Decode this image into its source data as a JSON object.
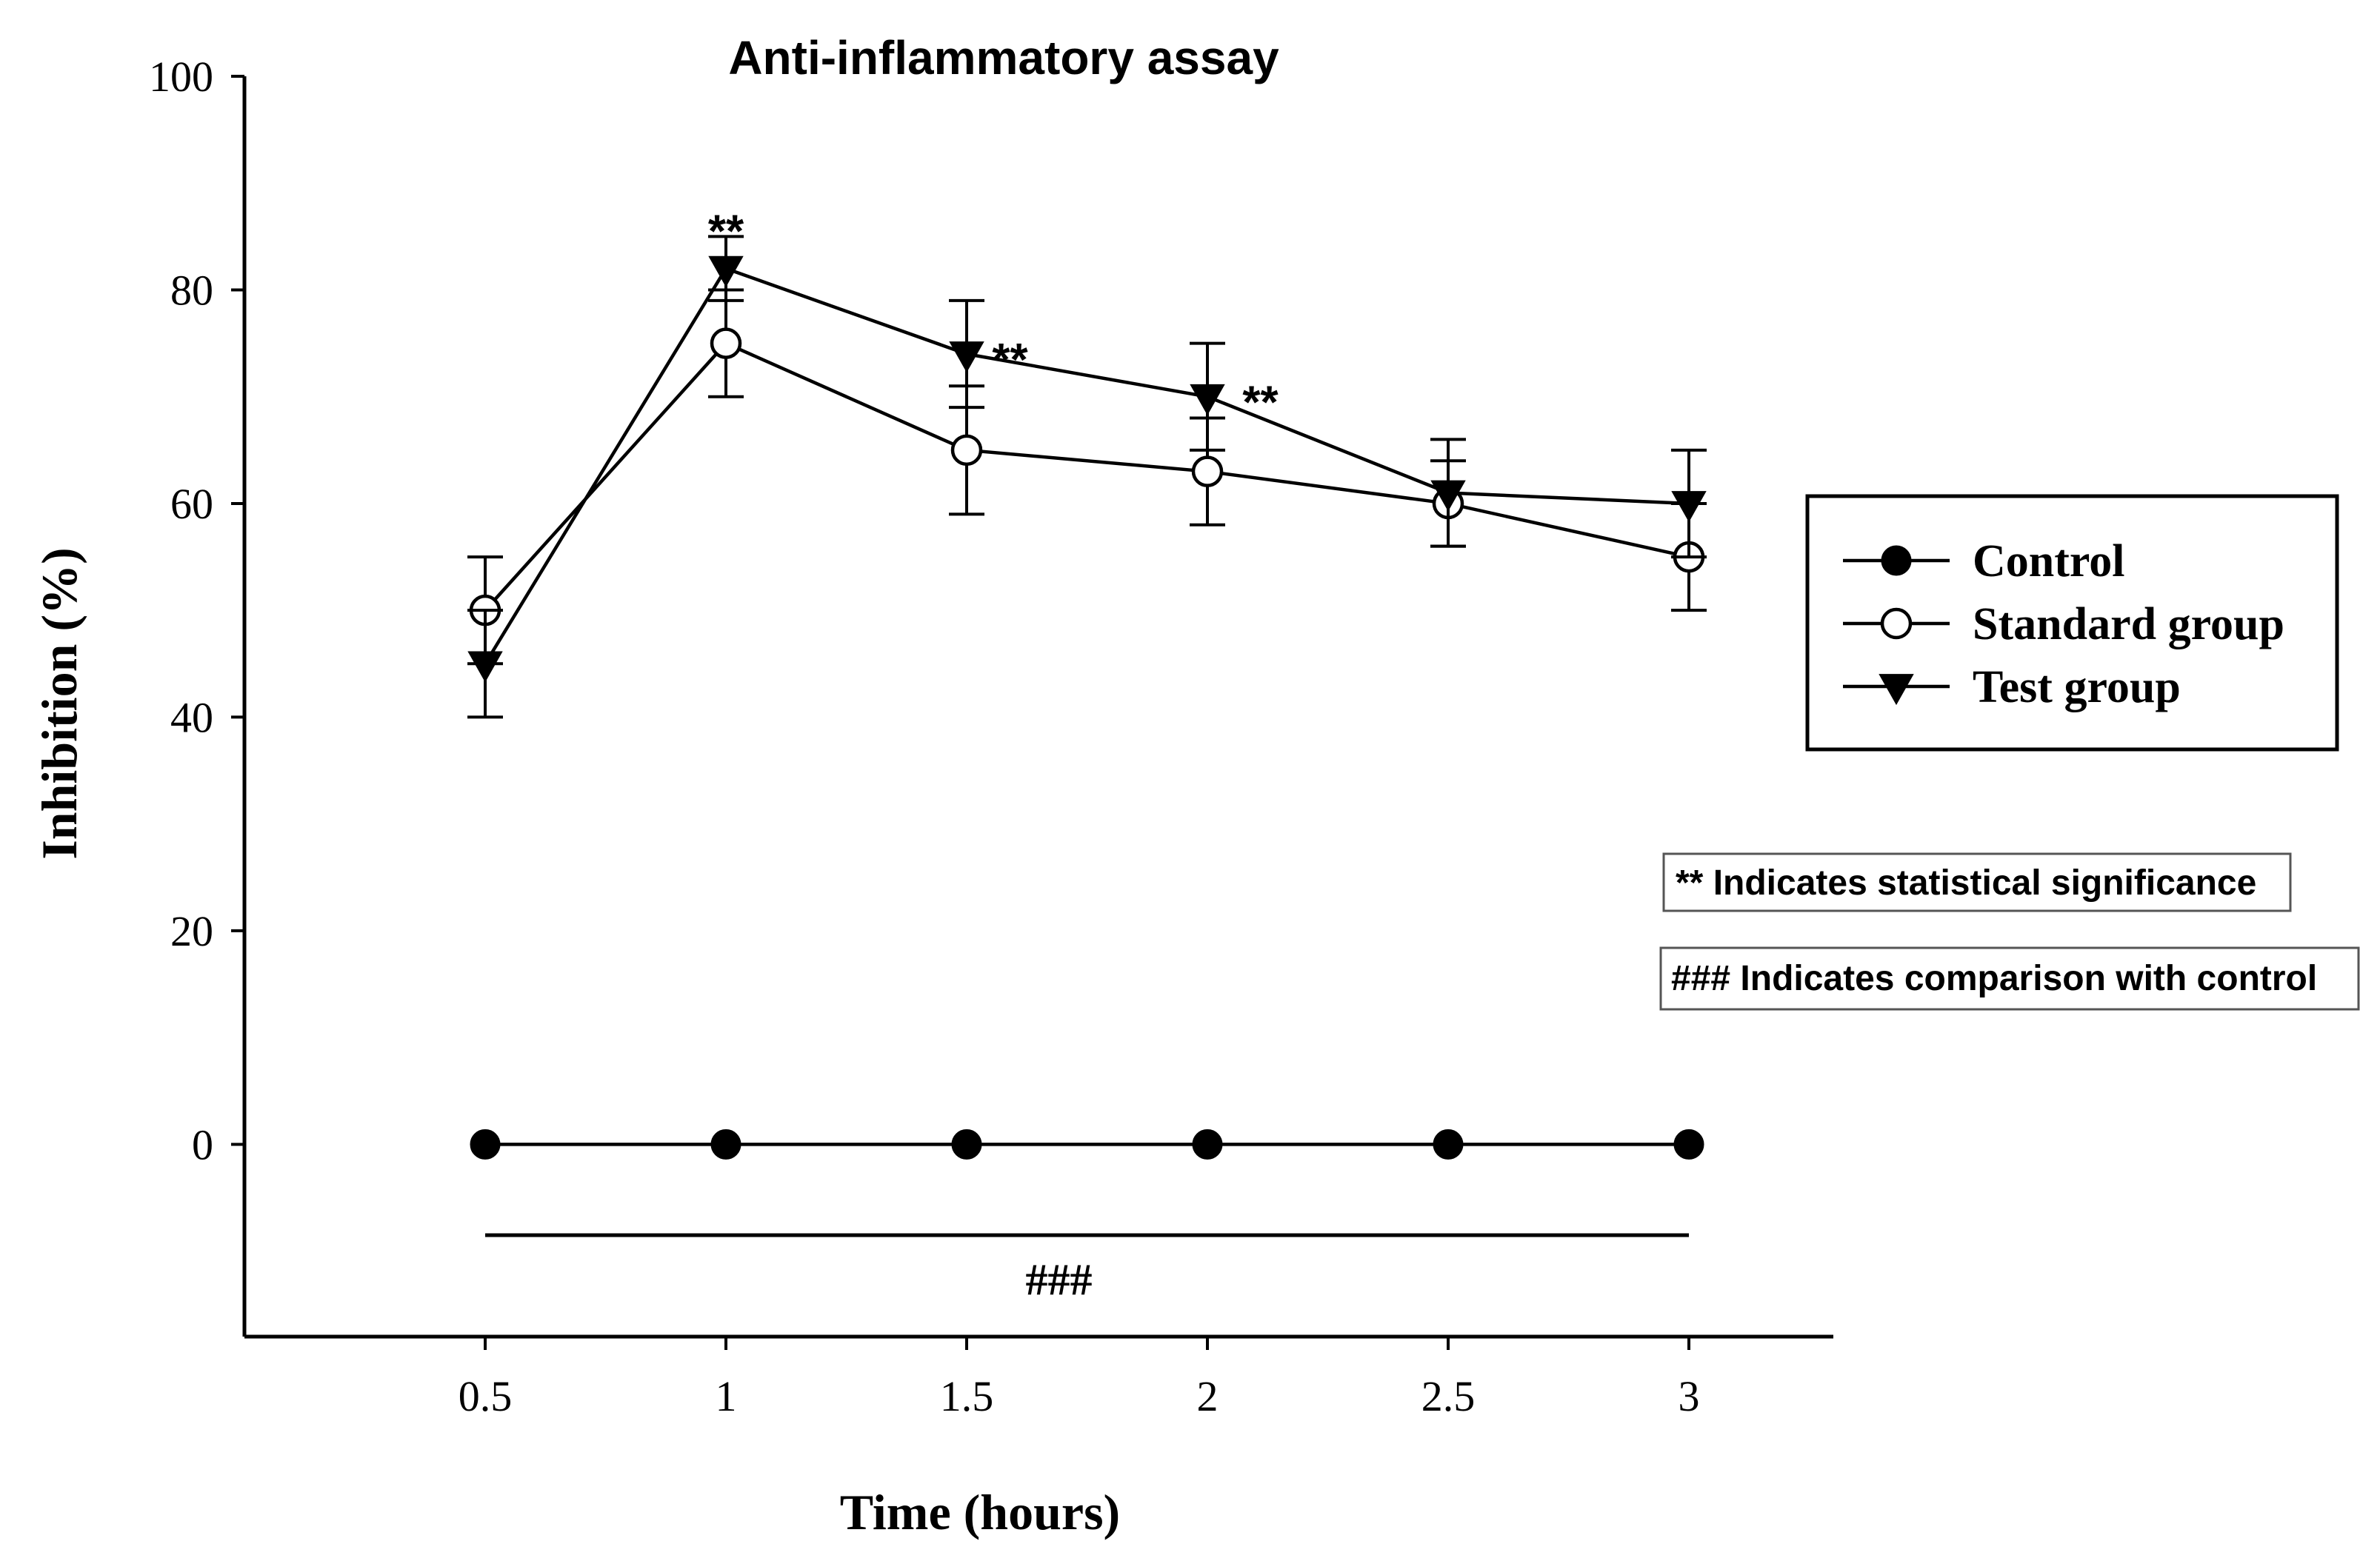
{
  "chart_data": {
    "type": "line",
    "title": "Anti-inflammatory assay",
    "xlabel": "Time (hours)",
    "ylabel": "Inhibition (%)",
    "x": [
      0.5,
      1,
      1.5,
      2,
      2.5,
      3
    ],
    "x_tick_labels": [
      "0.5",
      "1",
      "1.5",
      "2",
      "2.5",
      "3"
    ],
    "y_ticks": [
      0,
      20,
      40,
      60,
      80,
      100
    ],
    "y_tick_labels": [
      "0",
      "20",
      "40",
      "60",
      "80",
      "100"
    ],
    "xlim": [
      0,
      3.3
    ],
    "ylim": [
      -18,
      100
    ],
    "grid": false,
    "legend_position": "right",
    "series": [
      {
        "name": "Control",
        "marker": "filled-circle",
        "values": [
          0,
          0,
          0,
          0,
          0,
          0
        ],
        "errors": [
          0,
          0,
          0,
          0,
          0,
          0
        ]
      },
      {
        "name": "Standard group",
        "marker": "open-circle",
        "values": [
          50,
          75,
          65,
          63,
          60,
          55
        ],
        "errors": [
          5,
          5,
          6,
          5,
          4,
          5
        ]
      },
      {
        "name": "Test group",
        "marker": "filled-triangle-down",
        "values": [
          45,
          82,
          74,
          70,
          61,
          60
        ],
        "errors": [
          5,
          3,
          5,
          5,
          5,
          5
        ]
      }
    ],
    "significance_marks": [
      {
        "text": "**",
        "x": 1,
        "y": 86.5
      },
      {
        "text": "**",
        "x": 1.59,
        "y": 74.5
      },
      {
        "text": "**",
        "x": 2.11,
        "y": 70.5
      }
    ],
    "comparison_line": {
      "from": 0.5,
      "to": 3,
      "y": -8.5,
      "label": "###"
    },
    "notes": [
      "** Indicates statistical significance",
      "### Indicates comparison with control"
    ]
  }
}
